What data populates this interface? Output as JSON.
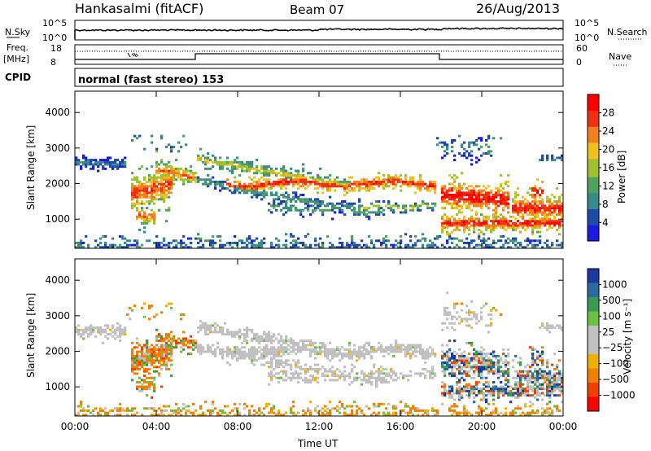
{
  "header": {
    "station": "Hankasalmi (fitACF)",
    "beam": "Beam 07",
    "date": "26/Aug/2013"
  },
  "panels": {
    "nsky_label": "N.Sky",
    "nsky_ticks": [
      "10^5",
      "10^0"
    ],
    "nsearch_label": "N.Search",
    "freq_label_1": "Freq.",
    "freq_label_2": "[MHz]",
    "freq_ticks": [
      "18",
      "8"
    ],
    "nave_label": "Nave",
    "nave_ticks": [
      "60",
      "0"
    ],
    "cpid_label": "CPID",
    "cpid_text": "normal (fast stereo) 153"
  },
  "colors": {
    "power": [
      "#1a1ae0",
      "#1e4aa8",
      "#3a8a8a",
      "#50a060",
      "#a0c030",
      "#f0c020",
      "#f08020",
      "#f03010",
      "#ff0000"
    ],
    "velocity_neg": [
      "#ff0000",
      "#f04000",
      "#f08000",
      "#f0b000"
    ],
    "velocity_pos": [
      "#1a3aa0",
      "#2a6aa0",
      "#3a9a50",
      "#6ac040"
    ],
    "ground": "#c0c0c0"
  },
  "chart_data": [
    {
      "type": "heatmap",
      "name": "power",
      "xlabel": "Time UT",
      "ylabel": "Slant Range [km]",
      "x_ticks": [
        "00:00",
        "04:00",
        "08:00",
        "12:00",
        "16:00",
        "20:00",
        "00:00"
      ],
      "y_ticks": [
        1000,
        2000,
        3000,
        4000
      ],
      "xlim": [
        0,
        24
      ],
      "ylim": [
        180,
        4600
      ],
      "colorbar_label": "Power [dB]",
      "colorbar_ticks": [
        4,
        8,
        12,
        16,
        20,
        24,
        28
      ],
      "colorbar_range": [
        0,
        32
      ]
    },
    {
      "type": "heatmap",
      "name": "velocity",
      "xlabel": "Time UT",
      "ylabel": "Slant Range [km]",
      "x_ticks": [
        "00:00",
        "04:00",
        "08:00",
        "12:00",
        "16:00",
        "20:00",
        "00:00"
      ],
      "y_ticks": [
        1000,
        2000,
        3000,
        4000
      ],
      "xlim": [
        0,
        24
      ],
      "ylim": [
        180,
        4600
      ],
      "colorbar_label": "Velocity [m s⁻¹]",
      "colorbar_ticks": [
        "1000",
        "500",
        "100",
        "25",
        "−25",
        "−100",
        "−500",
        "−1000"
      ]
    }
  ]
}
